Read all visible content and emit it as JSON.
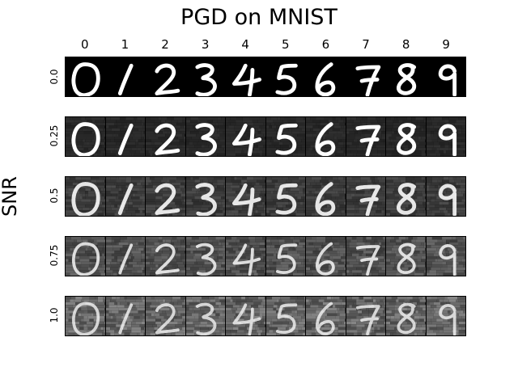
{
  "title": "PGD on MNIST",
  "ylabel": "SNR",
  "columns": [
    "0",
    "1",
    "2",
    "3",
    "4",
    "5",
    "6",
    "7",
    "8",
    "9"
  ],
  "rows": [
    {
      "label": "0.0",
      "noise": 0.0
    },
    {
      "label": "0.25",
      "noise": 0.25
    },
    {
      "label": "0.5",
      "noise": 0.5
    },
    {
      "label": "0.75",
      "noise": 0.75
    },
    {
      "label": "1.0",
      "noise": 1.0
    }
  ],
  "colors": {
    "background": "#000000",
    "stroke": "#ffffff",
    "frame": "#000000"
  }
}
